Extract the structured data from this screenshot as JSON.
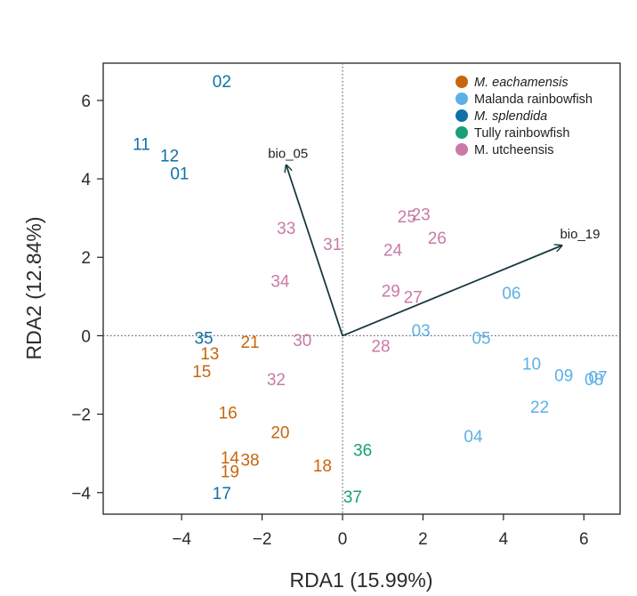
{
  "chart_data": {
    "type": "scatter",
    "title": "",
    "xlabel": "RDA1 (15.99%)",
    "ylabel": "RDA2 (12.84%)",
    "xlim": [
      -5.95,
      6.9
    ],
    "ylim": [
      -4.55,
      6.95
    ],
    "xticks": [
      -4,
      -2,
      0,
      2,
      4,
      6
    ],
    "yticks": [
      -4,
      -2,
      0,
      2,
      4,
      6
    ],
    "xtick_labels": [
      "−4",
      "−2",
      "0",
      "2",
      "4",
      "6"
    ],
    "ytick_labels": [
      "−4",
      "−2",
      "0",
      "2",
      "4",
      "6"
    ],
    "zero_lines": true,
    "legend_position": "top-right",
    "series": [
      {
        "name": "M. eachamensis",
        "italic": true,
        "color": "#c8650d",
        "points": [
          {
            "label": "13",
            "x": -3.3,
            "y": -0.45
          },
          {
            "label": "15",
            "x": -3.5,
            "y": -0.9
          },
          {
            "label": "21",
            "x": -2.3,
            "y": -0.15
          },
          {
            "label": "16",
            "x": -2.85,
            "y": -1.95
          },
          {
            "label": "20",
            "x": -1.55,
            "y": -2.45
          },
          {
            "label": "14",
            "x": -2.8,
            "y": -3.1
          },
          {
            "label": "38",
            "x": -2.3,
            "y": -3.15
          },
          {
            "label": "19",
            "x": -2.8,
            "y": -3.45
          },
          {
            "label": "18",
            "x": -0.5,
            "y": -3.3
          }
        ]
      },
      {
        "name": "Malanda rainbowfish",
        "italic": false,
        "color": "#5cb0e6",
        "points": [
          {
            "label": "06",
            "x": 4.2,
            "y": 1.1
          },
          {
            "label": "03",
            "x": 1.95,
            "y": 0.15
          },
          {
            "label": "05",
            "x": 3.45,
            "y": -0.05
          },
          {
            "label": "10",
            "x": 4.7,
            "y": -0.7
          },
          {
            "label": "09",
            "x": 5.5,
            "y": -1.0
          },
          {
            "label": "08",
            "x": 6.25,
            "y": -1.1
          },
          {
            "label": "07",
            "x": 6.35,
            "y": -1.05
          },
          {
            "label": "22",
            "x": 4.9,
            "y": -1.8
          },
          {
            "label": "04",
            "x": 3.25,
            "y": -2.55
          }
        ]
      },
      {
        "name": "M. splendida",
        "italic": true,
        "color": "#0e72a8",
        "points": [
          {
            "label": "02",
            "x": -3.0,
            "y": 6.5
          },
          {
            "label": "11",
            "x": -5.0,
            "y": 4.9
          },
          {
            "label": "12",
            "x": -4.3,
            "y": 4.6
          },
          {
            "label": "01",
            "x": -4.05,
            "y": 4.15
          },
          {
            "label": "35",
            "x": -3.45,
            "y": -0.05
          },
          {
            "label": "17",
            "x": -3.0,
            "y": -4.0
          }
        ]
      },
      {
        "name": "Tully rainbowfish",
        "italic": false,
        "color": "#17a079",
        "points": [
          {
            "label": "36",
            "x": 0.5,
            "y": -2.9
          },
          {
            "label": "37",
            "x": 0.25,
            "y": -4.1
          }
        ]
      },
      {
        "name": "M. utcheensis",
        "italic": false,
        "color": "#c97aa6",
        "points": [
          {
            "label": "25",
            "x": 1.6,
            "y": 3.05
          },
          {
            "label": "23",
            "x": 1.95,
            "y": 3.1
          },
          {
            "label": "26",
            "x": 2.35,
            "y": 2.5
          },
          {
            "label": "33",
            "x": -1.4,
            "y": 2.75
          },
          {
            "label": "31",
            "x": -0.25,
            "y": 2.35
          },
          {
            "label": "24",
            "x": 1.25,
            "y": 2.2
          },
          {
            "label": "34",
            "x": -1.55,
            "y": 1.4
          },
          {
            "label": "29",
            "x": 1.2,
            "y": 1.15
          },
          {
            "label": "27",
            "x": 1.75,
            "y": 1.0
          },
          {
            "label": "30",
            "x": -1.0,
            "y": -0.1
          },
          {
            "label": "28",
            "x": 0.95,
            "y": -0.25
          },
          {
            "label": "32",
            "x": -1.65,
            "y": -1.1
          }
        ]
      }
    ],
    "biplot_arrows": [
      {
        "label": "bio_05",
        "x": -1.4,
        "y": 4.35
      },
      {
        "label": "bio_19",
        "x": 5.45,
        "y": 2.3
      }
    ],
    "legend": [
      "M. eachamensis",
      "Malanda rainbowfish",
      "M. splendida",
      "Tully rainbowfish",
      "M. utcheensis"
    ]
  }
}
